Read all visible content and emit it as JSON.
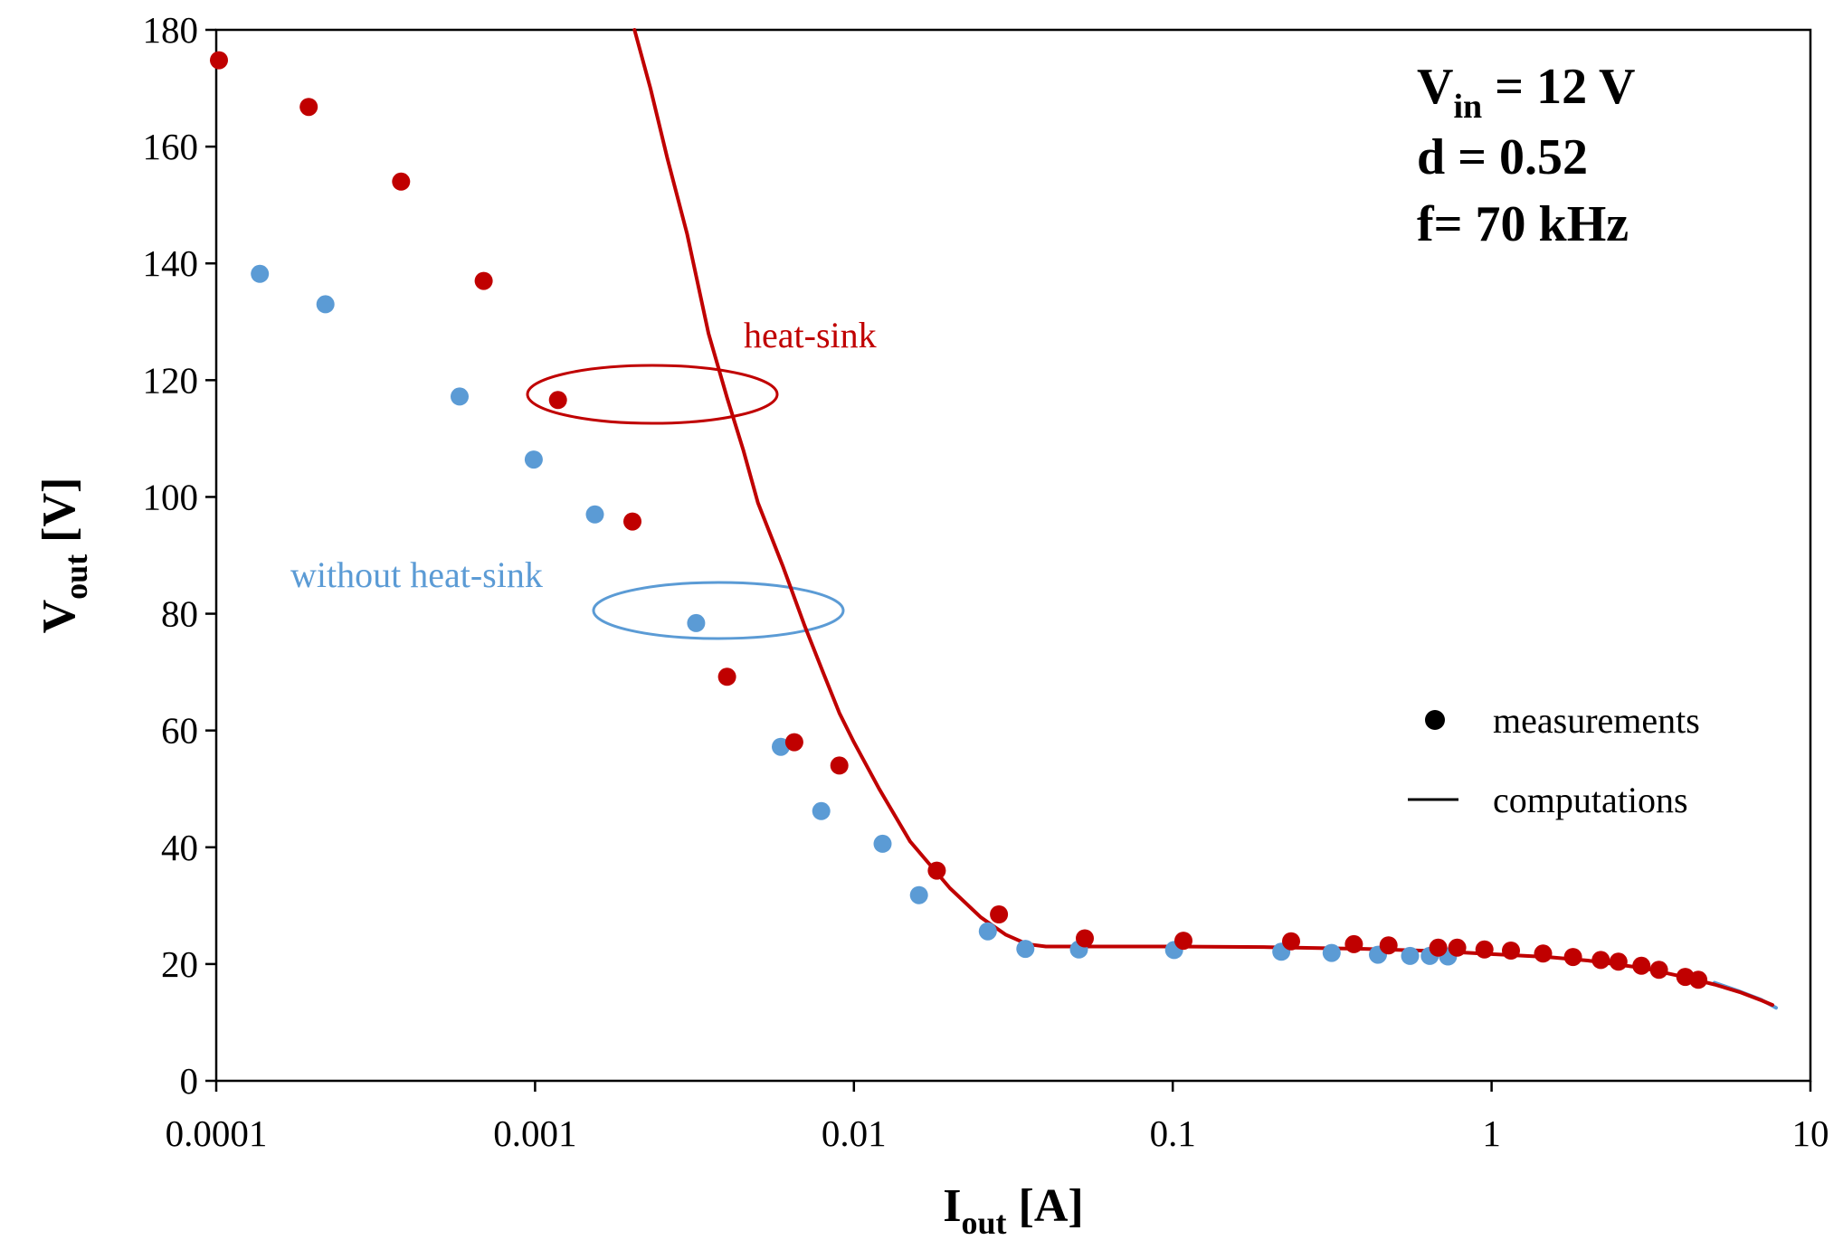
{
  "chart_data": {
    "type": "scatter",
    "x_scale": "log",
    "xlim": [
      0.0001,
      10
    ],
    "ylim": [
      0,
      180
    ],
    "grid": false,
    "x_ticks": [
      "0.0001",
      "0.001",
      "0.01",
      "0.1",
      "1",
      "10"
    ],
    "y_ticks": [
      "0",
      "20",
      "40",
      "60",
      "80",
      "100",
      "120",
      "140",
      "160",
      "180"
    ],
    "xlabel": {
      "main": "I",
      "sub": "out",
      "unit": " [A]"
    },
    "ylabel": {
      "main": "V",
      "sub": "out",
      "unit": " [V]"
    },
    "params": {
      "vin": {
        "main": "V",
        "sub": "in",
        "rest": " = 12 V"
      },
      "d": "d = 0.52",
      "f": "f= 70 kHz"
    },
    "legend": {
      "position": "right",
      "items": [
        {
          "marker": "dot",
          "label": "measurements"
        },
        {
          "marker": "line",
          "label": "computations"
        }
      ]
    },
    "annotations": [
      {
        "text": "heat-sink",
        "color": "#C00000"
      },
      {
        "text": "without heat-sink",
        "color": "#5B9BD5"
      }
    ],
    "series": [
      {
        "name": "heat-sink measurements",
        "kind": "points",
        "color": "#C00000",
        "points": [
          [
            0.000102,
            174.8
          ],
          [
            0.000195,
            166.8
          ],
          [
            0.00038,
            154.0
          ],
          [
            0.00069,
            137.0
          ],
          [
            0.00118,
            116.6
          ],
          [
            0.00202,
            95.8
          ],
          [
            0.004,
            69.2
          ],
          [
            0.0065,
            58.0
          ],
          [
            0.009,
            54.0
          ],
          [
            0.0182,
            36.0
          ],
          [
            0.0285,
            28.5
          ],
          [
            0.053,
            24.4
          ],
          [
            0.108,
            24.0
          ],
          [
            0.235,
            23.9
          ],
          [
            0.37,
            23.4
          ],
          [
            0.475,
            23.2
          ],
          [
            0.68,
            22.8
          ],
          [
            0.78,
            22.8
          ],
          [
            0.95,
            22.5
          ],
          [
            1.15,
            22.3
          ],
          [
            1.45,
            21.8
          ],
          [
            1.8,
            21.2
          ],
          [
            2.2,
            20.7
          ],
          [
            2.5,
            20.4
          ],
          [
            2.95,
            19.7
          ],
          [
            3.35,
            19.0
          ],
          [
            4.05,
            17.8
          ],
          [
            4.45,
            17.3
          ]
        ]
      },
      {
        "name": "without heat-sink measurements",
        "kind": "points",
        "color": "#5B9BD5",
        "points": [
          [
            0.000137,
            138.2
          ],
          [
            0.00022,
            133.0
          ],
          [
            0.00058,
            117.2
          ],
          [
            0.00099,
            106.4
          ],
          [
            0.00154,
            97.0
          ],
          [
            0.0032,
            78.4
          ],
          [
            0.0059,
            57.2
          ],
          [
            0.0079,
            46.2
          ],
          [
            0.0123,
            40.6
          ],
          [
            0.016,
            31.8
          ],
          [
            0.0263,
            25.6
          ],
          [
            0.0345,
            22.6
          ],
          [
            0.0508,
            22.5
          ],
          [
            0.101,
            22.4
          ],
          [
            0.219,
            22.1
          ],
          [
            0.315,
            21.9
          ],
          [
            0.44,
            21.6
          ],
          [
            0.555,
            21.4
          ],
          [
            0.64,
            21.4
          ],
          [
            0.73,
            21.3
          ]
        ]
      },
      {
        "name": "heat-sink computations",
        "kind": "line",
        "color": "#C00000",
        "points": [
          [
            0.00205,
            180.0
          ],
          [
            0.0023,
            170.0
          ],
          [
            0.0026,
            158.0
          ],
          [
            0.003,
            145.0
          ],
          [
            0.0035,
            128.0
          ],
          [
            0.004,
            117.0
          ],
          [
            0.0045,
            108.0
          ],
          [
            0.005,
            99.0
          ],
          [
            0.006,
            88.0
          ],
          [
            0.007,
            78.0
          ],
          [
            0.008,
            70.0
          ],
          [
            0.009,
            63.0
          ],
          [
            0.01,
            58.0
          ],
          [
            0.012,
            50.0
          ],
          [
            0.015,
            41.0
          ],
          [
            0.02,
            33.0
          ],
          [
            0.025,
            28.0
          ],
          [
            0.03,
            25.0
          ],
          [
            0.035,
            23.4
          ],
          [
            0.04,
            23.0
          ],
          [
            0.06,
            23.0
          ],
          [
            0.1,
            23.0
          ],
          [
            0.2,
            22.9
          ],
          [
            0.4,
            22.6
          ],
          [
            0.6,
            22.3
          ],
          [
            0.8,
            22.0
          ],
          [
            1.0,
            21.7
          ],
          [
            1.5,
            21.2
          ],
          [
            2.0,
            20.6
          ],
          [
            3.0,
            19.3
          ],
          [
            4.0,
            17.8
          ],
          [
            5.0,
            16.5
          ],
          [
            6.0,
            15.2
          ],
          [
            7.0,
            13.8
          ],
          [
            7.6,
            13.0
          ]
        ]
      },
      {
        "name": "without heat-sink computations",
        "kind": "line",
        "color": "#5B9BD5",
        "points": [
          [
            5.0,
            16.8
          ],
          [
            6.0,
            15.3
          ],
          [
            7.0,
            13.9
          ],
          [
            7.8,
            12.5
          ]
        ]
      }
    ]
  }
}
